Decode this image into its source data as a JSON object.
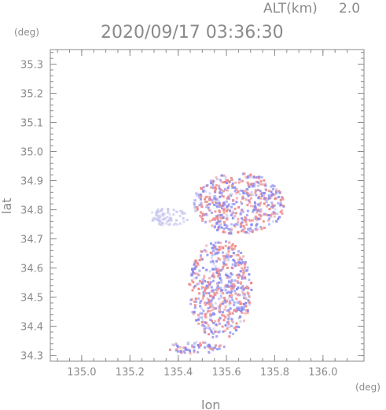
{
  "header": {
    "altitude_label": "ALT(km)",
    "altitude_value": "2.0",
    "timestamp": "2020/09/17 03:36:30"
  },
  "chart_data": {
    "type": "scatter",
    "title": "2020/09/17 03:36:30",
    "subtitle": "ALT(km) 2.0",
    "xlabel": "lon",
    "ylabel": "lat",
    "x_unit": "(deg)",
    "y_unit": "(deg)",
    "xlim": [
      134.87,
      136.17
    ],
    "ylim": [
      34.28,
      35.35
    ],
    "x_ticks": [
      "135.0",
      "135.2",
      "135.4",
      "135.6",
      "135.8",
      "136.0"
    ],
    "y_ticks": [
      "34.3",
      "34.4",
      "34.5",
      "34.6",
      "34.7",
      "34.8",
      "34.9",
      "35.0",
      "35.1",
      "35.2",
      "35.3"
    ],
    "grid": false,
    "colors": {
      "axis": "#8a8a8a",
      "positive": "#f08a8a",
      "negative": "#8a8af0",
      "neutral": "#c8c8f0"
    },
    "regions": [
      {
        "name": "north-cluster",
        "x": [
          135.46,
          135.84
        ],
        "y": [
          34.72,
          34.93
        ],
        "signed": true
      },
      {
        "name": "west-blob",
        "x": [
          135.27,
          135.44
        ],
        "y": [
          34.75,
          34.81
        ],
        "signed": false
      },
      {
        "name": "central-cluster",
        "x": [
          135.44,
          135.7
        ],
        "y": [
          34.36,
          34.7
        ],
        "signed": true
      },
      {
        "name": "south-strip",
        "x": [
          135.34,
          135.6
        ],
        "y": [
          34.31,
          34.35
        ],
        "signed": true
      }
    ]
  }
}
